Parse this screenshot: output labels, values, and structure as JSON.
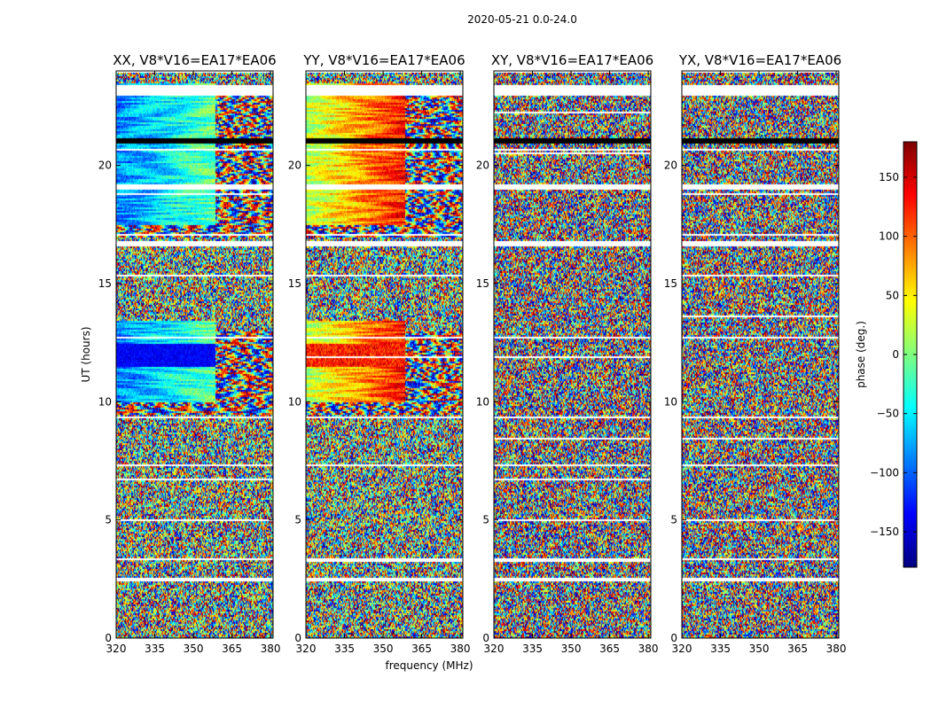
{
  "chart_data": {
    "type": "heatmap",
    "suptitle": "2020-05-21 0.0-24.0",
    "xlabel": "frequency (MHz)",
    "ylabel": "UT (hours)",
    "colorbar_label": "phase (deg.)",
    "colorbar_range": [
      -180,
      180
    ],
    "colorbar_ticks": [
      -150,
      -100,
      -50,
      0,
      50,
      100,
      150
    ],
    "colormap": [
      "#00007f",
      "#0000ff",
      "#007fff",
      "#00ffff",
      "#7fff7f",
      "#ffff00",
      "#ff7f00",
      "#ff0000",
      "#7f0000"
    ],
    "xlim": [
      320,
      381
    ],
    "ylim": [
      0,
      24
    ],
    "xticks": [
      320,
      335,
      350,
      365,
      380
    ],
    "yticks": [
      0,
      5,
      10,
      15,
      20
    ],
    "gap_hours": [
      [
        2.45,
        2.6
      ],
      [
        3.35,
        3.45
      ],
      [
        7.3,
        7.4
      ],
      [
        9.3,
        9.45
      ],
      [
        12.7,
        12.8
      ],
      [
        16.6,
        16.85
      ],
      [
        19.0,
        19.2
      ],
      [
        20.7,
        20.75
      ],
      [
        23.0,
        23.45
      ],
      [
        24.0,
        24.0
      ]
    ],
    "flagged_hours": [
      [
        20.8,
        21.3
      ]
    ],
    "panels": [
      {
        "title": "XX, V8*V16=EA17*EA06",
        "pattern": "smooth"
      },
      {
        "title": "YY, V8*V16=EA17*EA06",
        "pattern": "smooth-warm"
      },
      {
        "title": "XY, V8*V16=EA17*EA06",
        "pattern": "noisy"
      },
      {
        "title": "YX, V8*V16=EA17*EA06",
        "pattern": "noisy"
      }
    ]
  }
}
